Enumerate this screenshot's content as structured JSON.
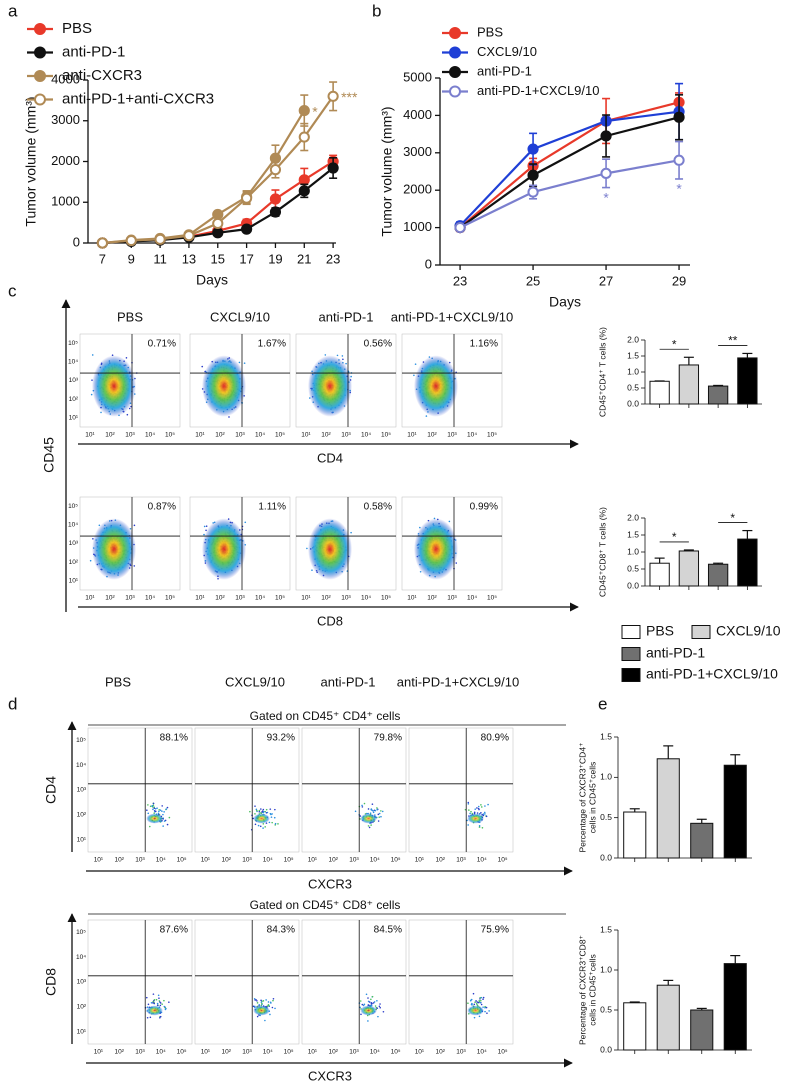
{
  "panel_labels": [
    "a",
    "b",
    "c",
    "d",
    "e"
  ],
  "groups": [
    {
      "name": "PBS",
      "color": "#ffffff"
    },
    {
      "name": "CXCL9/10",
      "color": "#d4d4d4"
    },
    {
      "name": "anti-PD-1",
      "color": "#707070"
    },
    {
      "name": "anti-PD-1+CXCL9/10",
      "color": "#000000"
    }
  ],
  "chart_data": [
    {
      "type": "line",
      "xlabel": "Days",
      "ylabel": "Tumor volume (mm³)",
      "x": [
        7,
        9,
        11,
        13,
        15,
        17,
        19,
        21,
        23
      ],
      "xlim": [
        6,
        23.2
      ],
      "xticks": [
        7,
        9,
        11,
        13,
        15,
        17,
        19,
        21,
        23
      ],
      "ylim": [
        0,
        4000
      ],
      "yticks": [
        0,
        1000,
        2000,
        3000,
        4000
      ],
      "significance_side": "right",
      "series": [
        {
          "name": "PBS",
          "color": "#e8392a",
          "values": [
            0,
            50,
            80,
            150,
            300,
            480,
            1080,
            1550,
            2000
          ],
          "errors": [
            0,
            15,
            20,
            30,
            50,
            100,
            220,
            280,
            150
          ]
        },
        {
          "name": "anti-PD-1",
          "color": "#111111",
          "values": [
            0,
            40,
            70,
            140,
            250,
            340,
            760,
            1280,
            1840
          ],
          "errors": [
            0,
            10,
            15,
            25,
            40,
            50,
            100,
            160,
            250
          ]
        },
        {
          "name": "anti-CXCR3",
          "color": "#b08a55",
          "values": [
            0,
            70,
            110,
            200,
            700,
            1130,
            2080,
            3250,
            null
          ],
          "errors": [
            0,
            15,
            20,
            40,
            60,
            150,
            320,
            380,
            null
          ],
          "significance": [
            null,
            null,
            null,
            null,
            null,
            null,
            null,
            "*",
            null
          ]
        },
        {
          "name": "anti-PD-1+anti-CXCR3",
          "color": "#b08a55",
          "open": true,
          "values": [
            0,
            60,
            90,
            180,
            480,
            1100,
            1800,
            2600,
            3600
          ],
          "errors": [
            0,
            10,
            20,
            30,
            60,
            150,
            200,
            330,
            350
          ],
          "significance": [
            null,
            null,
            null,
            null,
            null,
            null,
            null,
            null,
            "***"
          ]
        }
      ]
    },
    {
      "type": "line",
      "xlabel": "Days",
      "ylabel": "Tumor volume (mm³)",
      "x": [
        23,
        25,
        27,
        29
      ],
      "xlim": [
        22.45,
        29.3
      ],
      "xticks": [
        23,
        25,
        27,
        29
      ],
      "ylim": [
        0,
        5000
      ],
      "yticks": [
        0,
        1000,
        2000,
        3000,
        4000,
        5000
      ],
      "significance_side": "below",
      "series": [
        {
          "name": "PBS",
          "color": "#e8392a",
          "values": [
            1000,
            2650,
            3850,
            4350
          ],
          "errors": [
            100,
            200,
            600,
            250
          ]
        },
        {
          "name": "CXCL9/10",
          "color": "#1f3fd6",
          "values": [
            1050,
            3100,
            3850,
            4100
          ],
          "errors": [
            100,
            420,
            100,
            750
          ]
        },
        {
          "name": "anti-PD-1",
          "color": "#111111",
          "values": [
            1000,
            2400,
            3450,
            3950
          ],
          "errors": [
            80,
            300,
            560,
            600
          ]
        },
        {
          "name": "anti-PD-1+CXCL9/10",
          "color": "#7b7fce",
          "open": true,
          "values": [
            1000,
            1950,
            2450,
            2800
          ],
          "errors": [
            80,
            180,
            380,
            500
          ],
          "significance": [
            null,
            null,
            "*",
            "*"
          ]
        }
      ]
    },
    {
      "type": "bar",
      "ylabel": "CD45⁺CD4⁺ T cells (%)",
      "values": [
        0.71,
        1.22,
        0.56,
        1.44
      ],
      "errors": [
        0.01,
        0.24,
        0.02,
        0.14
      ],
      "ylim": [
        0,
        2
      ],
      "yticks": [
        {
          "value": 0,
          "label": "0.0"
        },
        0.5,
        {
          "value": 1,
          "label": "1.0"
        },
        1.5,
        {
          "value": 2,
          "label": "2.0"
        }
      ],
      "significance": [
        "*",
        "**"
      ]
    },
    {
      "type": "bar",
      "ylabel": "CD45⁺CD8⁺ T cells (%)",
      "values": [
        0.67,
        1.03,
        0.64,
        1.38
      ],
      "errors": [
        0.15,
        0.03,
        0.03,
        0.25
      ],
      "ylim": [
        0,
        2
      ],
      "yticks": [
        {
          "value": 0,
          "label": "0.0"
        },
        0.5,
        {
          "value": 1,
          "label": "1.0"
        },
        1.5,
        {
          "value": 2,
          "label": "2.0"
        }
      ],
      "significance": [
        "*",
        "*"
      ]
    },
    {
      "type": "bar",
      "ylabel": [
        "Percentage of CXCR3⁺CD4⁺",
        "cells in CD45⁺cells"
      ],
      "values": [
        0.57,
        1.23,
        0.43,
        1.15
      ],
      "errors": [
        0.04,
        0.16,
        0.05,
        0.13
      ],
      "ylim": [
        0,
        1.5
      ],
      "yticks": [
        {
          "value": 0,
          "label": "0.0"
        },
        0.5,
        {
          "value": 1,
          "label": "1.0"
        },
        1.5
      ]
    },
    {
      "type": "bar",
      "ylabel": [
        "Percentage of CXCR3⁺CD8⁺",
        "cells in CD45⁺cells"
      ],
      "values": [
        0.59,
        0.81,
        0.5,
        1.08
      ],
      "errors": [
        0.01,
        0.06,
        0.02,
        0.1
      ],
      "ylim": [
        0,
        1.5
      ],
      "yticks": [
        {
          "value": 0,
          "label": "0.0"
        },
        0.5,
        {
          "value": 1,
          "label": "1.0"
        },
        1.5
      ]
    }
  ],
  "flow_c": {
    "columns": [
      "PBS",
      "CXCL9/10",
      "anti-PD-1",
      "anti-PD-1+CXCL9/10"
    ],
    "y_label": "CD45",
    "ticks": [
      "10¹",
      "10²",
      "10³",
      "10⁴",
      "10⁵"
    ],
    "rows": [
      {
        "x_label": "CD4",
        "percentages": [
          "0.71%",
          "1.67%",
          "0.56%",
          "1.16%"
        ]
      },
      {
        "x_label": "CD8",
        "percentages": [
          "0.87%",
          "1.11%",
          "0.58%",
          "0.99%"
        ]
      }
    ]
  },
  "flow_d": {
    "columns": [
      "PBS",
      "CXCL9/10",
      "anti-PD-1",
      "anti-PD-1+CXCL9/10"
    ],
    "ticks": [
      "10¹",
      "10²",
      "10³",
      "10⁴",
      "10⁵"
    ],
    "rows": [
      {
        "gate": "Gated on CD45⁺ CD4⁺ cells",
        "y_label": "CD4",
        "x_label": "CXCR3",
        "percentages": [
          "88.1%",
          "93.2%",
          "79.8%",
          "80.9%"
        ]
      },
      {
        "gate": "Gated on CD45⁺ CD8⁺ cells",
        "y_label": "CD8",
        "x_label": "CXCR3",
        "percentages": [
          "87.6%",
          "84.3%",
          "84.5%",
          "75.9%"
        ]
      }
    ]
  }
}
